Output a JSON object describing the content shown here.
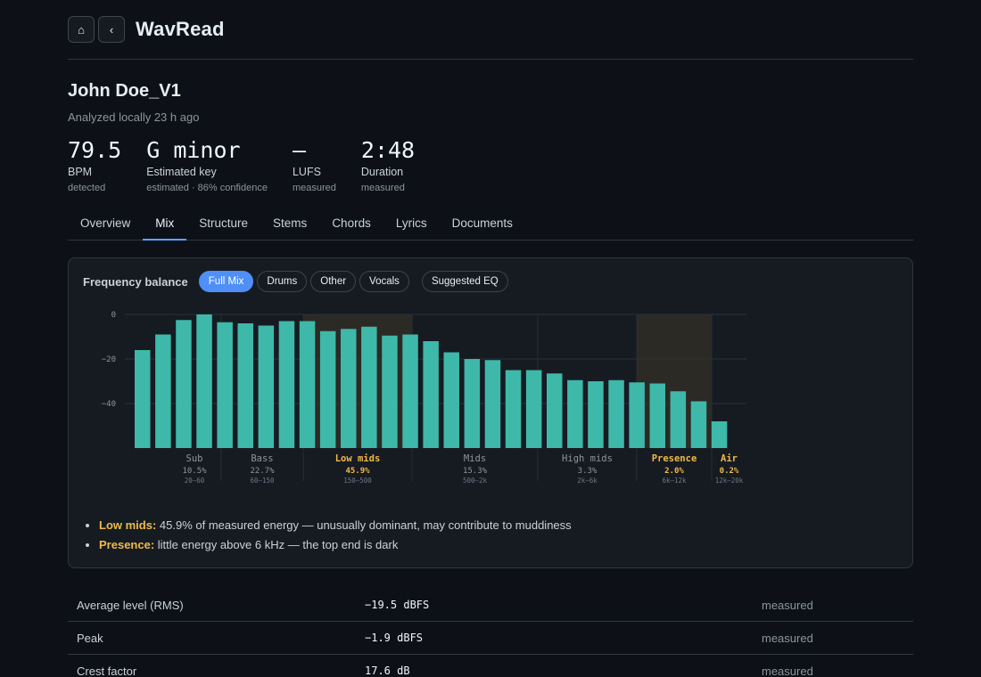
{
  "header": {
    "home_icon": "home-icon",
    "back_icon": "chevron-left-icon",
    "app_title": "WavRead"
  },
  "track": {
    "title": "John Doe_V1",
    "analyzed": "Analyzed locally 23 h ago"
  },
  "stats": [
    {
      "value": "79.5",
      "label": "BPM",
      "sub": "detected"
    },
    {
      "value": "G minor",
      "label": "Estimated key",
      "sub": "estimated · 86% confidence"
    },
    {
      "value": "—",
      "label": "LUFS",
      "sub": "measured"
    },
    {
      "value": "2:48",
      "label": "Duration",
      "sub": "measured"
    }
  ],
  "tabs": [
    "Overview",
    "Mix",
    "Structure",
    "Stems",
    "Chords",
    "Lyrics",
    "Documents"
  ],
  "active_tab": "Mix",
  "frequency": {
    "title": "Frequency balance",
    "filters": [
      "Full Mix",
      "Drums",
      "Other",
      "Vocals"
    ],
    "active_filter": "Full Mix",
    "suggest_label": "Suggested EQ",
    "notes": [
      {
        "label": "Low mids:",
        "text": "45.9% of measured energy — unusually dominant, may contribute to muddiness"
      },
      {
        "label": "Presence:",
        "text": "little energy above 6 kHz — the top end is dark"
      }
    ]
  },
  "chart_data": {
    "type": "bar",
    "ylim": [
      -60,
      0
    ],
    "yticks": [
      0,
      -20,
      -40
    ],
    "values": [
      -16,
      -9,
      -2.5,
      0,
      -3.5,
      -4,
      -5,
      -3,
      -3,
      -7.5,
      -6.5,
      -5.5,
      -9.5,
      -9,
      -12,
      -17,
      -20,
      -20.5,
      -25,
      -25,
      -26.5,
      -29.5,
      -30,
      -29.5,
      -30.5,
      -31,
      -34.5,
      -39,
      -48
    ],
    "bands": [
      {
        "name": "Sub",
        "pct": "10.5%",
        "range": "20–60",
        "highlight": false
      },
      {
        "name": "Bass",
        "pct": "22.7%",
        "range": "60–150",
        "highlight": false
      },
      {
        "name": "Low mids",
        "pct": "45.9%",
        "range": "150–500",
        "highlight": true
      },
      {
        "name": "Mids",
        "pct": "15.3%",
        "range": "500–2k",
        "highlight": false
      },
      {
        "name": "High mids",
        "pct": "3.3%",
        "range": "2k–6k",
        "highlight": false
      },
      {
        "name": "Presence",
        "pct": "2.0%",
        "range": "6k–12k",
        "highlight": true
      },
      {
        "name": "Air",
        "pct": "0.2%",
        "range": "12k–20k",
        "highlight": true
      }
    ],
    "colors": {
      "bar": "#3eb8a9",
      "highlight_text": "#f0b94a",
      "highlight_bg": "#2c2a24"
    }
  },
  "metrics": [
    {
      "name": "Average level (RMS)",
      "value": "−19.5 dBFS",
      "source": "measured"
    },
    {
      "name": "Peak",
      "value": "−1.9 dBFS",
      "source": "measured"
    },
    {
      "name": "Crest factor",
      "value": "17.6 dB",
      "source": "measured"
    }
  ]
}
